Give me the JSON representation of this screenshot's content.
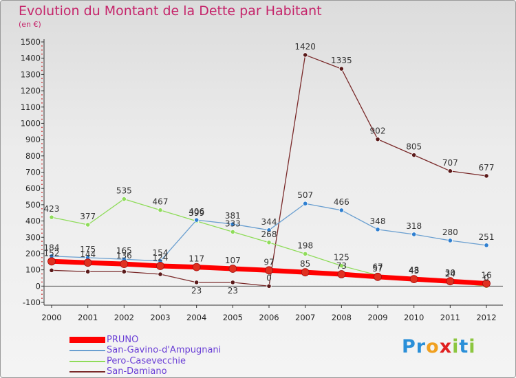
{
  "title": "Evolution du Montant de la Dette par Habitant",
  "subtitle": "(en €)",
  "logo": {
    "text": "Proxiti",
    "letter_colors": [
      "#2a8fd8",
      "#2a8fd8",
      "#f0a020",
      "#e02020",
      "#8cc63f",
      "#2a8fd8",
      "#8cc63f"
    ]
  },
  "chart_data": {
    "type": "line",
    "title": "Evolution du Montant de la Dette par Habitant",
    "subtitle": "(en €)",
    "x": [
      "2000",
      "2001",
      "2002",
      "2003",
      "2004",
      "2005",
      "2006",
      "2007",
      "2008",
      "2009",
      "2010",
      "2011",
      "2012"
    ],
    "y_ticks": [
      "1500",
      "1400",
      "1300",
      "1200",
      "1100",
      "1000",
      "900",
      "800",
      "700",
      "600",
      "500",
      "400",
      "300",
      "200",
      "100",
      "0",
      "-100"
    ],
    "ylim": [
      -100,
      1500
    ],
    "grid": false,
    "legend_position": "bottom-left",
    "series": [
      {
        "name": "PRUNO",
        "color": "#ff0000",
        "marker_color": "#e03020",
        "width": 7,
        "values": [
          152,
          144,
          136,
          124,
          117,
          107,
          97,
          85,
          73,
          57,
          43,
          30,
          16
        ],
        "labels": [
          "152",
          "144",
          "136",
          "124",
          "117",
          "107",
          "97",
          "85",
          "73",
          "57",
          "43",
          "30",
          "16"
        ]
      },
      {
        "name": "San-Gavino-d'Ampugnani",
        "color": "#6a9fd0",
        "marker_color": "#2f7fd0",
        "width": 1.3,
        "values": [
          184,
          175,
          165,
          154,
          406,
          381,
          344,
          507,
          466,
          348,
          318,
          280,
          251
        ],
        "labels": [
          "184",
          "175",
          "165",
          "154",
          "406",
          "381",
          "344",
          "507",
          "466",
          "348",
          "318",
          "280",
          "251"
        ]
      },
      {
        "name": "Pero-Casevecchie",
        "color": "#8fdc5a",
        "marker_color": "#8fdc5a",
        "width": 1.3,
        "values": [
          423,
          377,
          535,
          467,
          399,
          333,
          268,
          198,
          125,
          67,
          48,
          24,
          0
        ],
        "labels": [
          "423",
          "377",
          "535",
          "467",
          "399",
          "333",
          "268",
          "198",
          "125",
          "67",
          "48",
          "24",
          "0"
        ]
      },
      {
        "name": "San-Damiano",
        "color": "#7a2a2a",
        "marker_color": "#5a1a1a",
        "width": 1.3,
        "values": [
          97,
          89,
          89,
          73,
          23,
          23,
          0,
          1420,
          1335,
          902,
          805,
          707,
          677
        ],
        "labels": [
          "",
          "",
          "",
          "",
          "23",
          "23",
          "0",
          "1420",
          "1335",
          "902",
          "805",
          "707",
          "677"
        ]
      }
    ]
  }
}
